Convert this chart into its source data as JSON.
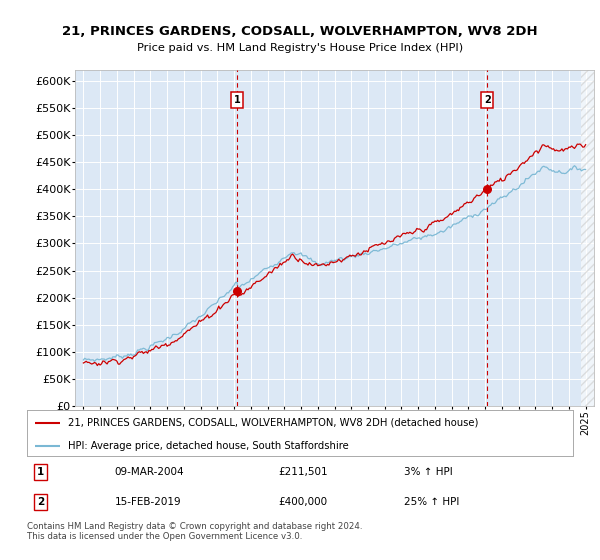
{
  "title1": "21, PRINCES GARDENS, CODSALL, WOLVERHAMPTON, WV8 2DH",
  "title2": "Price paid vs. HM Land Registry's House Price Index (HPI)",
  "legend_line1": "21, PRINCES GARDENS, CODSALL, WOLVERHAMPTON, WV8 2DH (detached house)",
  "legend_line2": "HPI: Average price, detached house, South Staffordshire",
  "annotation1_label": "1",
  "annotation1_date": "09-MAR-2004",
  "annotation1_price": "£211,501",
  "annotation1_hpi": "3% ↑ HPI",
  "annotation2_label": "2",
  "annotation2_date": "15-FEB-2019",
  "annotation2_price": "£400,000",
  "annotation2_hpi": "25% ↑ HPI",
  "footer": "Contains HM Land Registry data © Crown copyright and database right 2024.\nThis data is licensed under the Open Government Licence v3.0.",
  "purchase1_year": 2004.19,
  "purchase1_price": 211501,
  "purchase2_year": 2019.12,
  "purchase2_price": 400000,
  "hpi_color": "#7ab8d4",
  "price_color": "#cc0000",
  "dashed_color": "#cc0000",
  "background_color": "#ffffff",
  "plot_bg_color": "#dce8f5",
  "grid_color": "#ffffff",
  "ylim_min": 0,
  "ylim_max": 620000,
  "xlim_min": 1994.5,
  "xlim_max": 2025.5
}
